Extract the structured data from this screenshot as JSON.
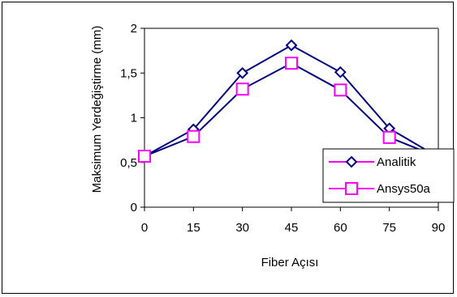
{
  "chart_data": {
    "type": "line",
    "title": "",
    "xlabel": "Fiber Açısı",
    "ylabel": "Maksimum Yerdeğiştirme (mm)",
    "x": [
      0,
      15,
      30,
      45,
      60,
      75,
      90
    ],
    "x_tick_labels": [
      "0",
      "15",
      "30",
      "45",
      "60",
      "75",
      "90"
    ],
    "y_ticks": [
      0,
      0.5,
      1,
      1.5,
      2
    ],
    "y_tick_labels": [
      "0",
      "0,5",
      "1",
      "1,5",
      "2"
    ],
    "xlim": [
      0,
      90
    ],
    "ylim": [
      0,
      2
    ],
    "grid": false,
    "legend_position": "right",
    "series": [
      {
        "name": "Analitik",
        "values": [
          0.57,
          0.87,
          1.5,
          1.81,
          1.51,
          0.88,
          0.56
        ],
        "line_color": "#000080",
        "marker": "diamond",
        "marker_color": "#000080"
      },
      {
        "name": "Ansys50a",
        "values": [
          0.57,
          0.79,
          1.32,
          1.61,
          1.31,
          0.78,
          0.56
        ],
        "line_color": "#000080",
        "marker": "square",
        "marker_color": "#ff00ff"
      }
    ],
    "legend_line_color": "#ff00ff",
    "plot_border_color": "#808080",
    "axis_color": "#000000"
  }
}
